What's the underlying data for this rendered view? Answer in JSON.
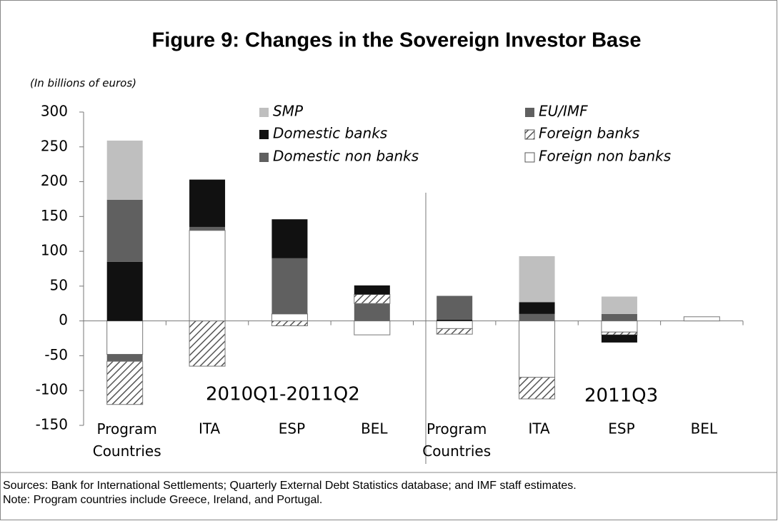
{
  "chart_data": {
    "type": "stacked_bar",
    "title": "Figure 9: Changes in the Sovereign Investor Base",
    "ylabel": "(In billions of euros)",
    "categories": [
      "Program Countries",
      "ITA",
      "ESP",
      "BEL",
      "Program Countries",
      "ITA",
      "ESP",
      "BEL"
    ],
    "series": [
      {
        "name": "SMP",
        "color": "#bfbfbf",
        "values": [
          85,
          null,
          null,
          null,
          null,
          66,
          25,
          null
        ]
      },
      {
        "name": "EU/IMF",
        "color": "#606060",
        "values": [
          89,
          null,
          null,
          null,
          34,
          null,
          null,
          null
        ]
      },
      {
        "name": "Domestic banks",
        "color": "#111111",
        "values": [
          85,
          68,
          56,
          13,
          2,
          17,
          -11,
          null
        ]
      },
      {
        "name": "Foreign banks",
        "color": "#555555",
        "hatch": true,
        "values": [
          -62,
          -65,
          -7,
          13,
          -8,
          -31,
          -4,
          null
        ]
      },
      {
        "name": "Domestic non banks",
        "color": "#606060",
        "values": [
          -10,
          5,
          80,
          25,
          null,
          10,
          10,
          null
        ]
      },
      {
        "name": "Foreign non banks",
        "color": "#ffffff",
        "values": [
          -48,
          130,
          10,
          -20,
          -11,
          -81,
          -16,
          6
        ]
      }
    ],
    "ylim": [
      -150,
      300
    ],
    "yticks": [
      -150,
      -100,
      -50,
      0,
      50,
      100,
      150,
      200,
      250,
      300
    ],
    "annotations": [
      "2010Q1-2011Q2",
      "2011Q3"
    ],
    "sources": "Sources: Bank for International Settlements; Quarterly External Debt Statistics database; and IMF staff estimates.",
    "note": "Note: Program countries include Greece, Ireland, and Portugal."
  }
}
